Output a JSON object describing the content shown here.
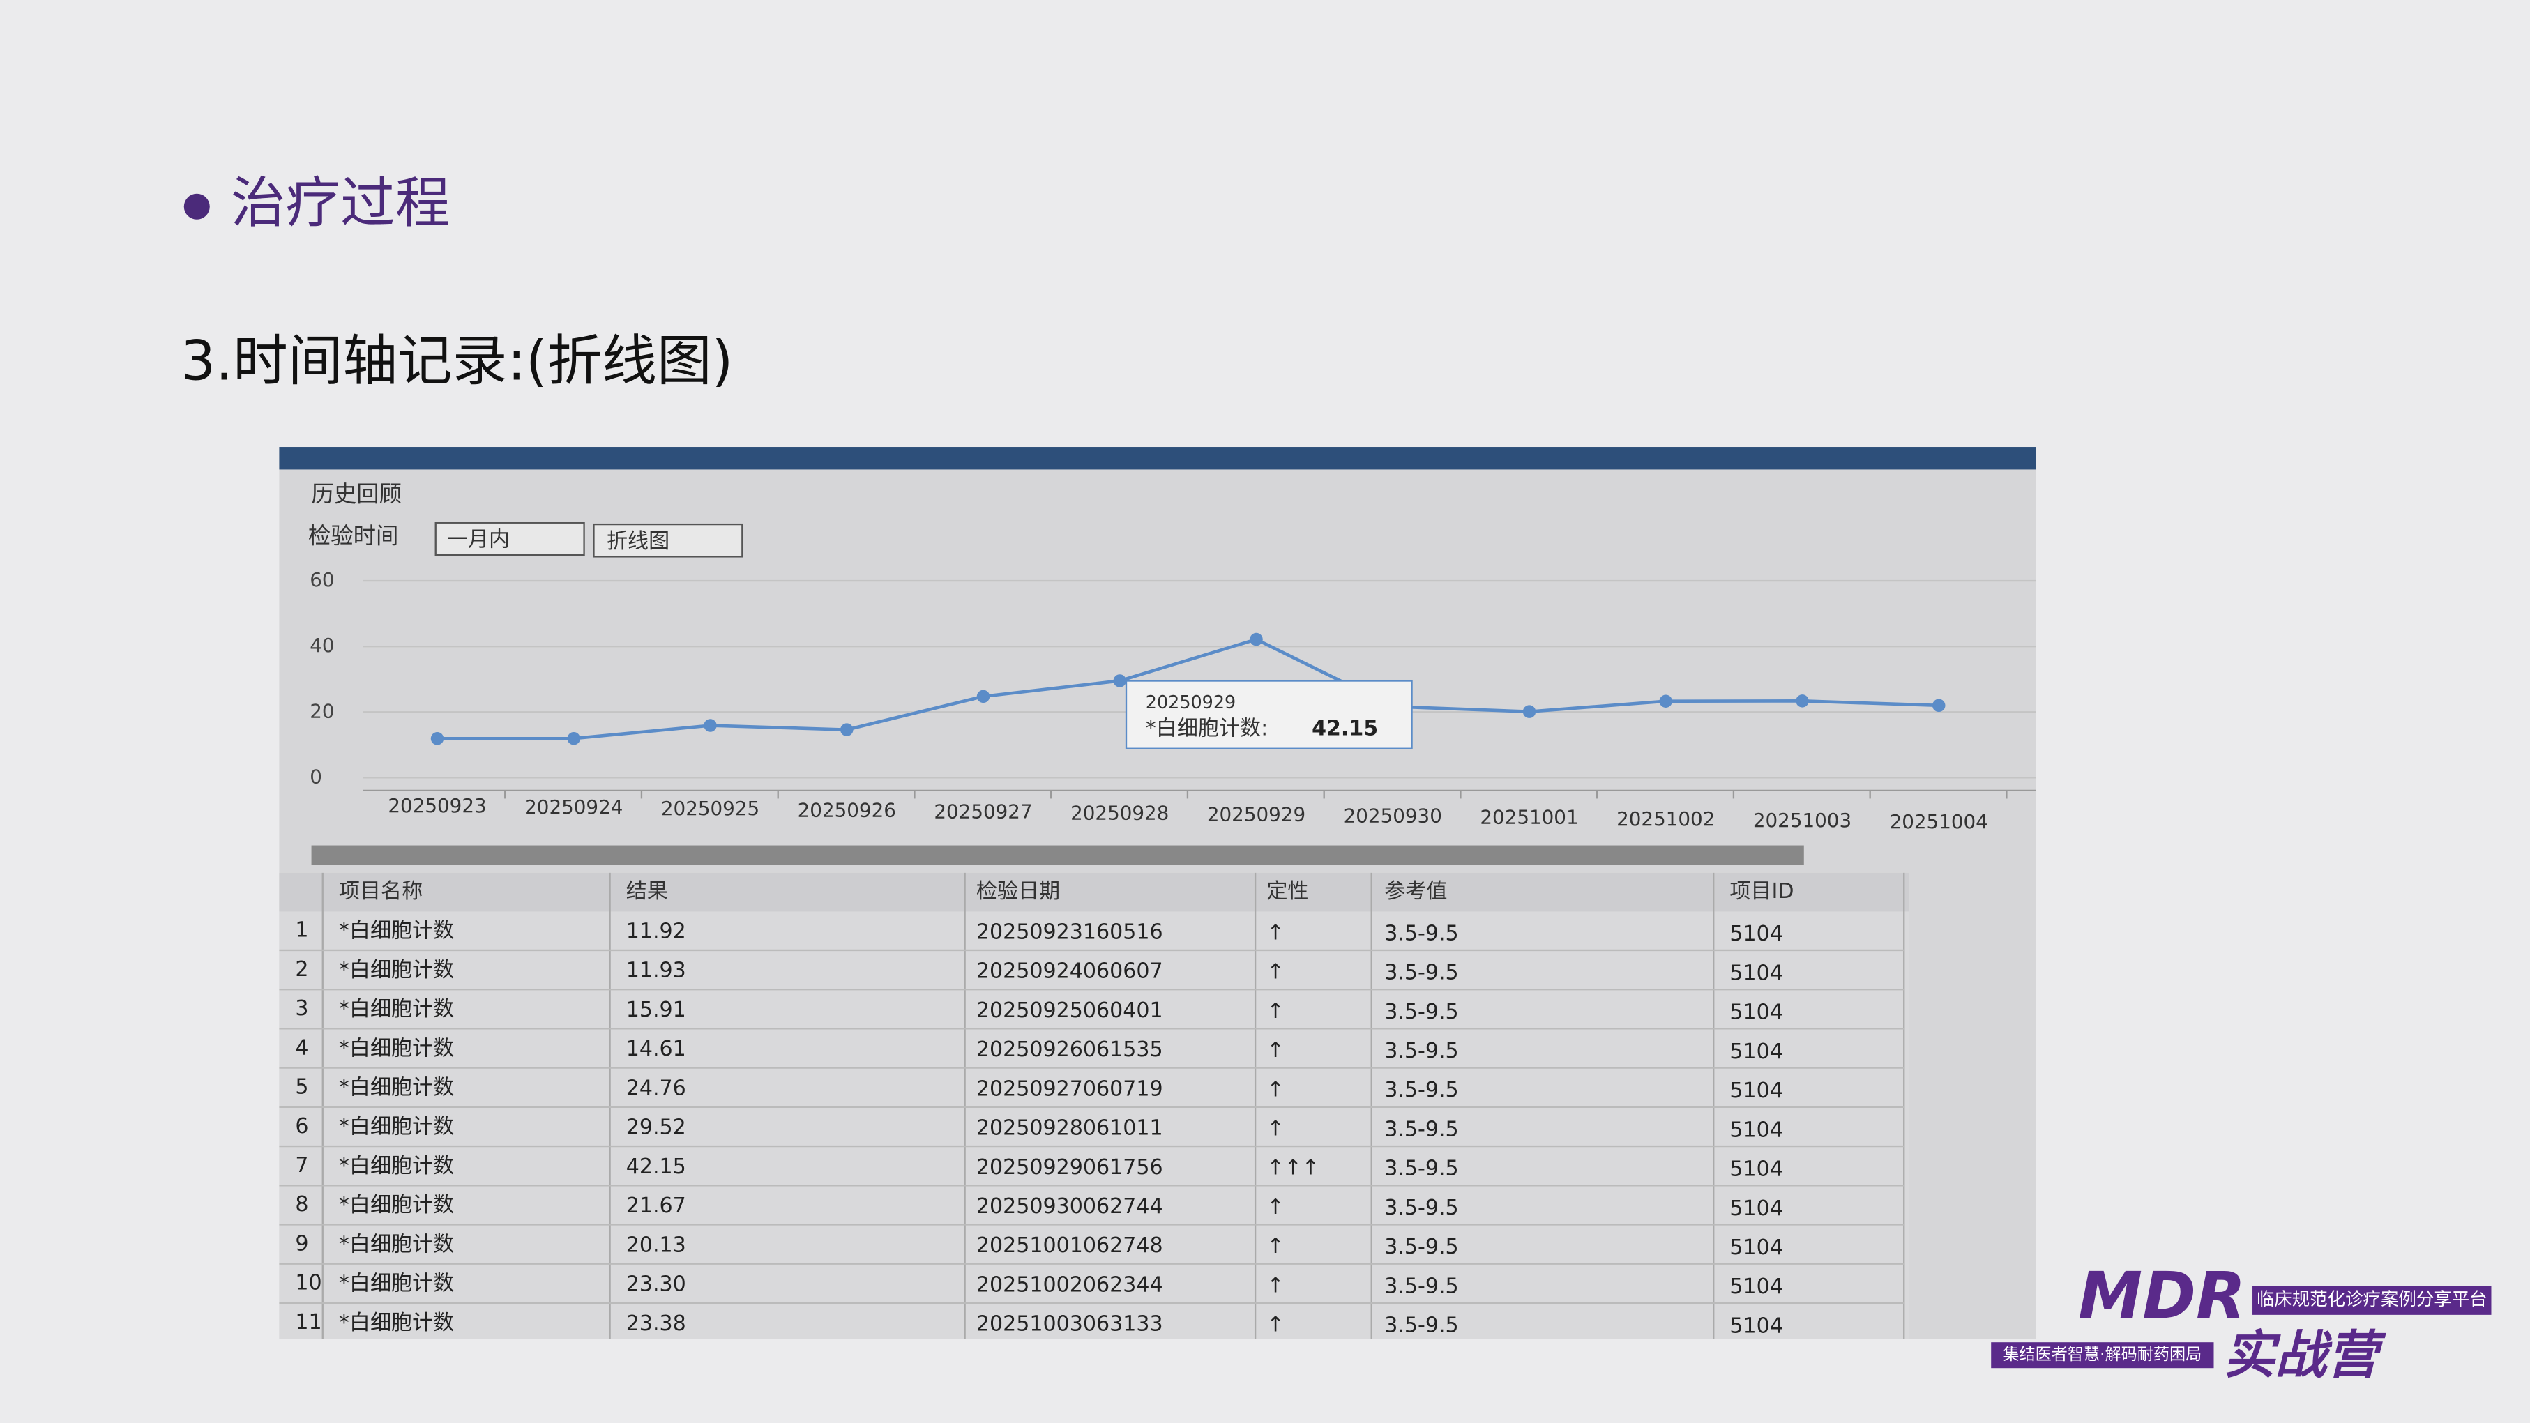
{
  "slide": {
    "title": "治疗过程",
    "subtitle": "3.时间轴记录:(折线图)"
  },
  "window": {
    "title": "历史回顾",
    "filter_label": "检验时间",
    "range_select": "一月内",
    "view_select": "折线图"
  },
  "chart_data": {
    "type": "line",
    "categories": [
      "20250923",
      "20250924",
      "20250925",
      "20250926",
      "20250927",
      "20250928",
      "20250929",
      "20250930",
      "20251001",
      "20251002",
      "20251003",
      "20251004"
    ],
    "series": [
      {
        "name": "*白细胞计数",
        "color": "#5b8cc8",
        "values": [
          11.92,
          11.93,
          15.91,
          14.61,
          24.76,
          29.52,
          42.15,
          21.67,
          20.13,
          23.3,
          23.38,
          22
        ]
      }
    ],
    "ylim": [
      0,
      60
    ],
    "yticks": [
      0,
      20,
      40,
      60
    ],
    "grid": true,
    "tooltip": {
      "date": "20250929",
      "label": "*白细胞计数:",
      "value": 42.15
    }
  },
  "table": {
    "headers": [
      "项目名称",
      "结果",
      "检验日期",
      "定性",
      "参考值",
      "项目ID"
    ],
    "rows": [
      [
        1,
        "*白细胞计数",
        "11.92",
        "20250923160516",
        "↑",
        "3.5-9.5",
        "5104"
      ],
      [
        2,
        "*白细胞计数",
        "11.93",
        "20250924060607",
        "↑",
        "3.5-9.5",
        "5104"
      ],
      [
        3,
        "*白细胞计数",
        "15.91",
        "20250925060401",
        "↑",
        "3.5-9.5",
        "5104"
      ],
      [
        4,
        "*白细胞计数",
        "14.61",
        "20250926061535",
        "↑",
        "3.5-9.5",
        "5104"
      ],
      [
        5,
        "*白细胞计数",
        "24.76",
        "20250927060719",
        "↑",
        "3.5-9.5",
        "5104"
      ],
      [
        6,
        "*白细胞计数",
        "29.52",
        "20250928061011",
        "↑",
        "3.5-9.5",
        "5104"
      ],
      [
        7,
        "*白细胞计数",
        "42.15",
        "20250929061756",
        "↑↑↑",
        "3.5-9.5",
        "5104"
      ],
      [
        8,
        "*白细胞计数",
        "21.67",
        "20250930062744",
        "↑",
        "3.5-9.5",
        "5104"
      ],
      [
        9,
        "*白细胞计数",
        "20.13",
        "20251001062748",
        "↑",
        "3.5-9.5",
        "5104"
      ],
      [
        10,
        "*白细胞计数",
        "23.30",
        "20251002062344",
        "↑",
        "3.5-9.5",
        "5104"
      ],
      [
        11,
        "*白细胞计数",
        "23.38",
        "20251003063133",
        "↑",
        "3.5-9.5",
        "5104"
      ]
    ]
  },
  "logo": {
    "brand": "MDR",
    "platform": "临床规范化诊疗案例分享平台",
    "slogan": "集结医者智慧·解码耐药困局",
    "camp": "实战营"
  }
}
